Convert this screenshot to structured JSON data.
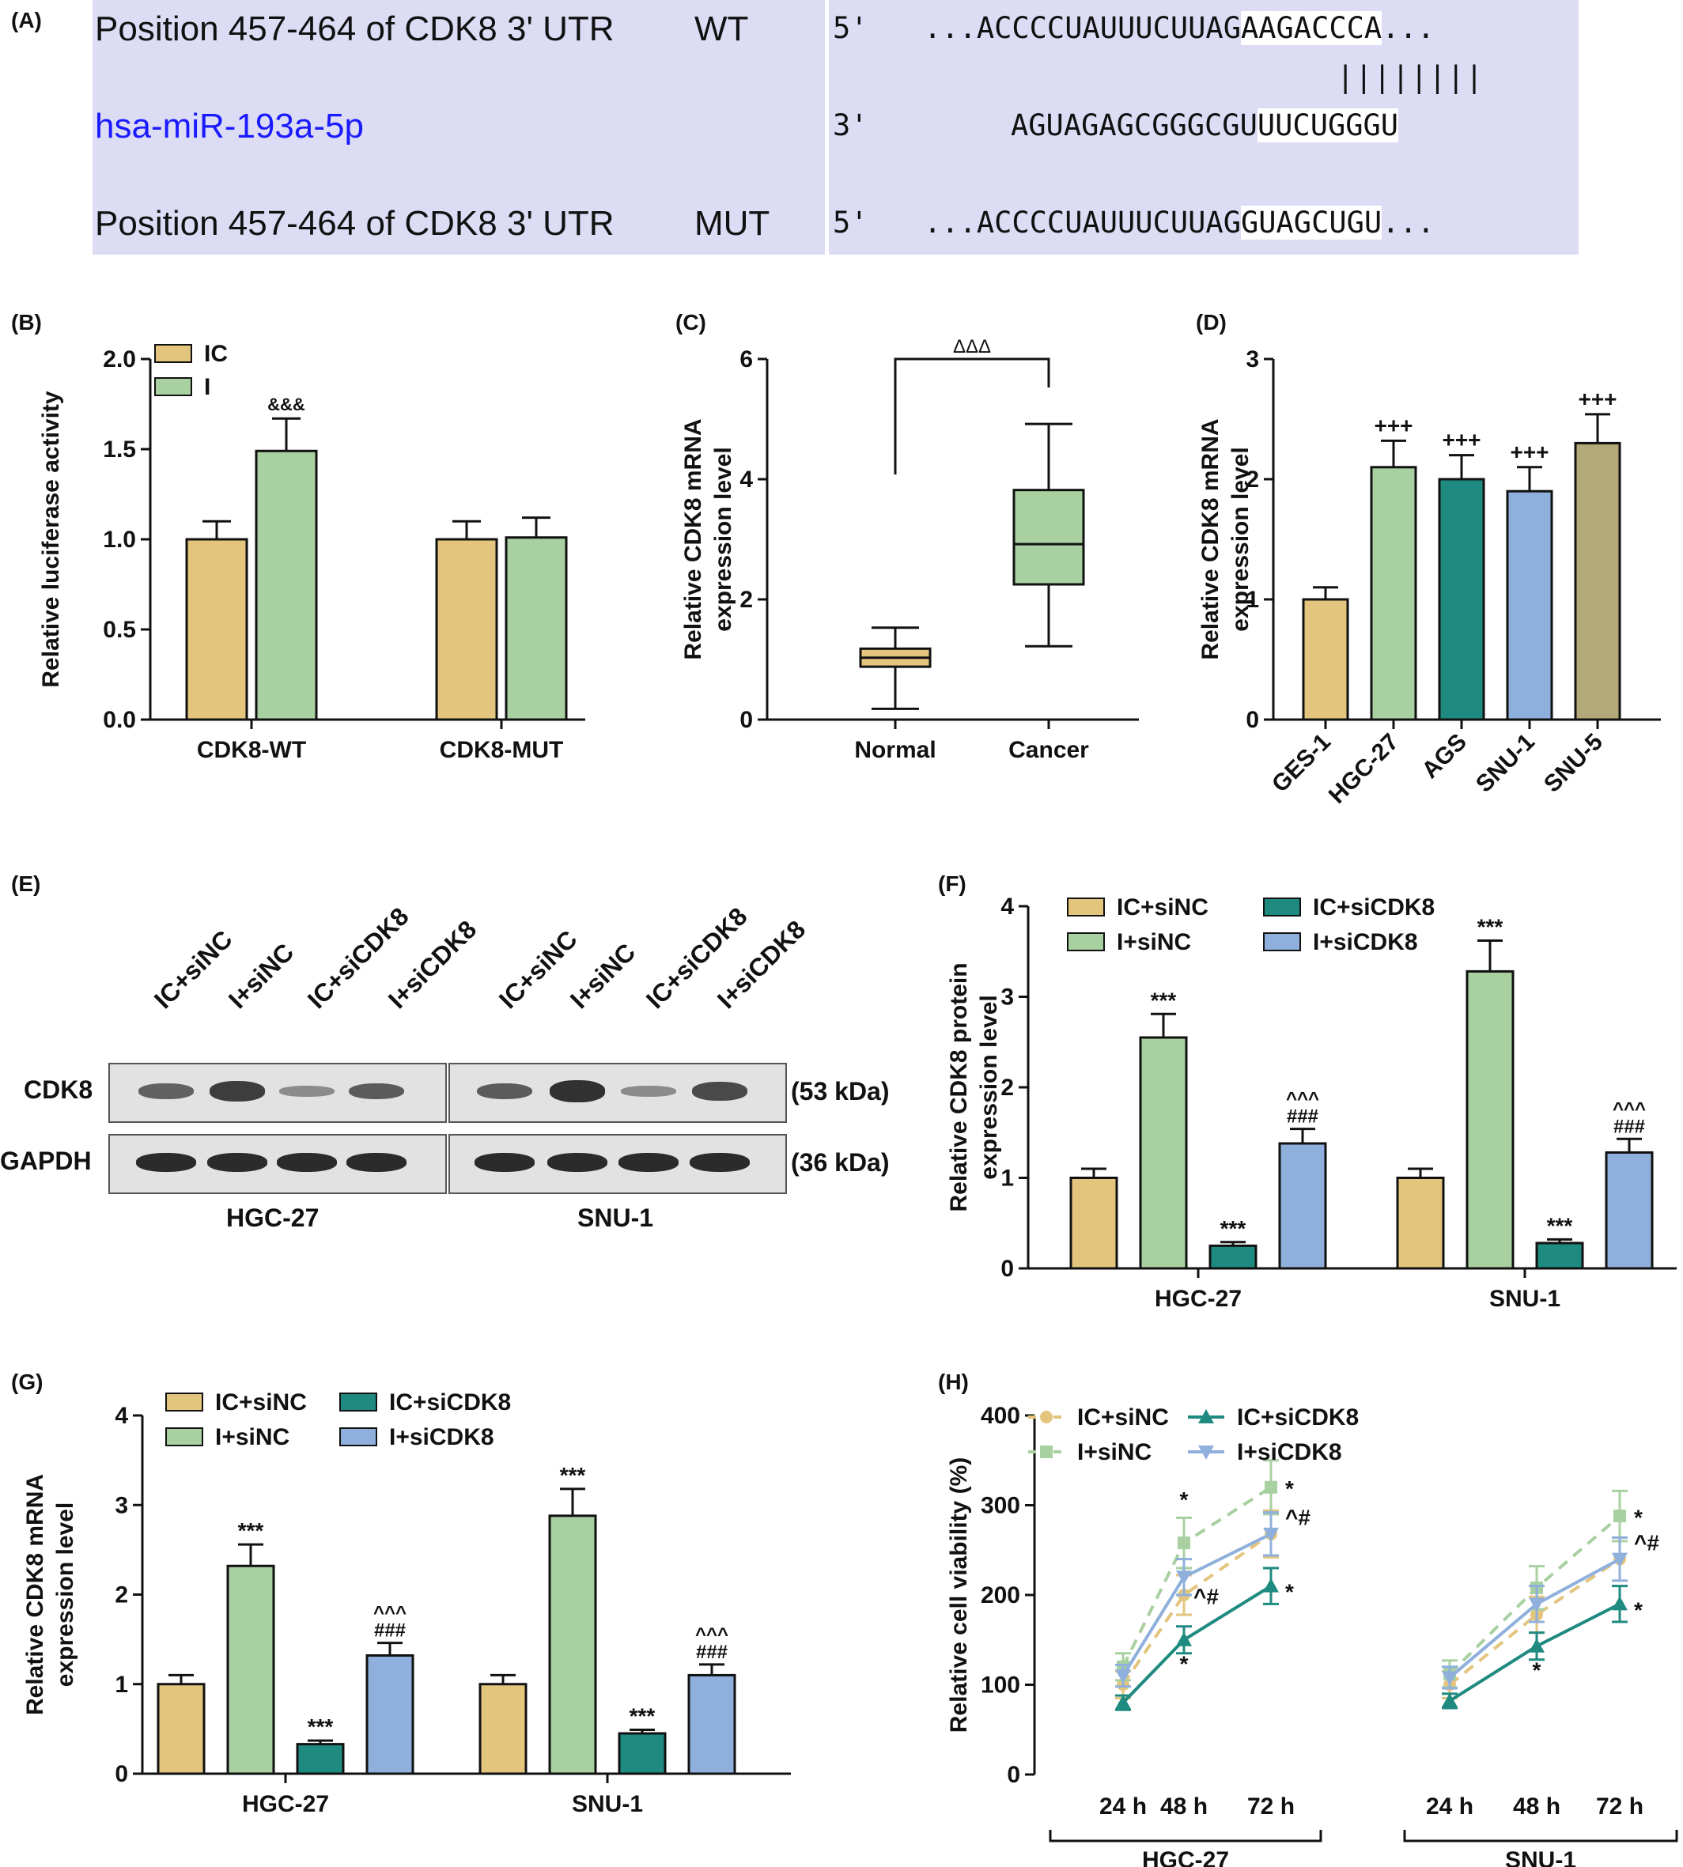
{
  "panel_labels": {
    "A": "(A)",
    "B": "(B)",
    "C": "(C)",
    "D": "(D)",
    "E": "(E)",
    "F": "(F)",
    "G": "(G)",
    "H": "(H)"
  },
  "panelA": {
    "row1_label": "Position 457-464 of CDK8 3' UTR",
    "row1_tag": "WT",
    "row1_end": "5'",
    "row1_seq_pre": "...ACCCCUAUUUCUUAG",
    "row1_seq_hl": "AAGACCCA",
    "row1_seq_post": "...",
    "pairing": "||||||||",
    "row2_label": "hsa-miR-193a-5p",
    "row2_label_color": "#1a1aff",
    "row2_end": "3'",
    "row2_seq_pre": "AGUAGAGCGGGCGU",
    "row2_seq_hl": "UUCUGGGU",
    "row3_label": "Position 457-464 of CDK8 3' UTR",
    "row3_tag": "MUT",
    "row3_end": "5'",
    "row3_seq_pre": "...ACCCCUAUUUCUUAG",
    "row3_seq_hl": "GUAGCUGU",
    "row3_seq_post": "..."
  },
  "colors": {
    "ic_sinc": "#e3c57e",
    "i_sinc": "#a8d0a0",
    "ic_sicdk8": "#1f8a80",
    "i_sicdk8": "#8fb0dc",
    "snu5": "#b3a978",
    "box_bg": "#dcdcf5"
  },
  "panelE": {
    "lanes": [
      "IC+siNC",
      "I+siNC",
      "IC+siCDK8",
      "I+siCDK8",
      "IC+siNC",
      "I+siNC",
      "IC+siCDK8",
      "I+siCDK8"
    ],
    "rows": [
      "CDK8",
      "GAPDH"
    ],
    "sizes": [
      "(53 kDa)",
      "(36 kDa)"
    ],
    "groups": [
      "HGC-27",
      "SNU-1"
    ],
    "cdk8_band_intensity": [
      0.55,
      0.85,
      0.2,
      0.6,
      0.6,
      0.95,
      0.2,
      0.75
    ]
  },
  "chart_data": [
    {
      "panel": "B",
      "type": "bar",
      "categories": [
        "CDK8-WT",
        "CDK8-MUT"
      ],
      "series": [
        {
          "name": "IC",
          "values": [
            1.0,
            1.0
          ],
          "errors": [
            0.1,
            0.1
          ]
        },
        {
          "name": "I",
          "values": [
            1.49,
            1.01
          ],
          "errors": [
            0.18,
            0.11
          ]
        }
      ],
      "annotations": [
        {
          "text": "&&&",
          "category": 0,
          "series": 1
        }
      ],
      "ylabel": "Relative luciferase activity",
      "ylim": [
        0,
        2.0
      ],
      "yticks": [
        "0.0",
        "0.5",
        "1.0",
        "1.5",
        "2.0"
      ],
      "legend": "top-left",
      "grid": false
    },
    {
      "panel": "C",
      "type": "box",
      "categories": [
        "Normal",
        "Cancer"
      ],
      "boxes": [
        {
          "min": 0.18,
          "q1": 0.88,
          "median": 1.03,
          "q3": 1.18,
          "max": 1.53
        },
        {
          "min": 1.22,
          "q1": 2.25,
          "median": 2.92,
          "q3": 3.82,
          "max": 4.92
        }
      ],
      "significance": "ΔΔΔ",
      "ylabel": "Relative CDK8 mRNA expression level",
      "ylim": [
        0,
        6
      ],
      "yticks": [
        "0",
        "2",
        "4",
        "6"
      ],
      "grid": false
    },
    {
      "panel": "D",
      "type": "bar",
      "categories": [
        "GES-1",
        "HGC-27",
        "AGS",
        "SNU-1",
        "SNU-5"
      ],
      "values": [
        1.0,
        2.1,
        2.0,
        1.9,
        2.3
      ],
      "errors": [
        0.1,
        0.22,
        0.2,
        0.2,
        0.24
      ],
      "annotations": [
        "",
        "+++",
        "+++",
        "+++",
        "+++"
      ],
      "ylabel": "Relative CDK8 mRNA expression level",
      "ylim": [
        0,
        3
      ],
      "yticks": [
        "0",
        "1",
        "2",
        "3"
      ],
      "grid": false
    },
    {
      "panel": "F",
      "type": "bar",
      "categories": [
        "HGC-27",
        "SNU-1"
      ],
      "series": [
        {
          "name": "IC+siNC",
          "values": [
            1.0,
            1.0
          ],
          "errors": [
            0.1,
            0.1
          ],
          "labels": [
            "",
            ""
          ]
        },
        {
          "name": "I+siNC",
          "values": [
            2.55,
            3.28
          ],
          "errors": [
            0.26,
            0.34
          ],
          "labels": [
            "***",
            "***"
          ]
        },
        {
          "name": "IC+siCDK8",
          "values": [
            0.25,
            0.28
          ],
          "errors": [
            0.04,
            0.04
          ],
          "labels": [
            "***",
            "***"
          ]
        },
        {
          "name": "I+siCDK8",
          "values": [
            1.38,
            1.28
          ],
          "errors": [
            0.16,
            0.15
          ],
          "labels": [
            "^^^\n###",
            "^^^\n###"
          ]
        }
      ],
      "ylabel": "Relative CDK8 protein expression level",
      "ylim": [
        0,
        4
      ],
      "yticks": [
        "0",
        "1",
        "2",
        "3",
        "4"
      ],
      "legend": "top",
      "grid": false
    },
    {
      "panel": "G",
      "type": "bar",
      "categories": [
        "HGC-27",
        "SNU-1"
      ],
      "series": [
        {
          "name": "IC+siNC",
          "values": [
            1.0,
            1.0
          ],
          "errors": [
            0.1,
            0.1
          ],
          "labels": [
            "",
            ""
          ]
        },
        {
          "name": "I+siNC",
          "values": [
            2.32,
            2.88
          ],
          "errors": [
            0.24,
            0.3
          ],
          "labels": [
            "***",
            "***"
          ]
        },
        {
          "name": "IC+siCDK8",
          "values": [
            0.33,
            0.45
          ],
          "errors": [
            0.04,
            0.04
          ],
          "labels": [
            "***",
            "***"
          ]
        },
        {
          "name": "I+siCDK8",
          "values": [
            1.32,
            1.1
          ],
          "errors": [
            0.14,
            0.12
          ],
          "labels": [
            "^^^\n###",
            "^^^\n###"
          ]
        }
      ],
      "ylabel": "Relative CDK8 mRNA expression level",
      "ylim": [
        0,
        4
      ],
      "yticks": [
        "0",
        "1",
        "2",
        "3",
        "4"
      ],
      "legend": "top",
      "grid": false
    },
    {
      "panel": "H",
      "type": "line",
      "x": [
        "24 h",
        "48 h",
        "72 h"
      ],
      "groups": [
        "HGC-27",
        "SNU-1"
      ],
      "series": [
        {
          "name": "IC+siNC",
          "marker": "circle",
          "dash": true,
          "values": [
            [
              100,
              200,
              268
            ],
            [
              100,
              178,
              240
            ]
          ],
          "errors": [
            [
              15,
              22,
              26
            ],
            [
              15,
              20,
              24
            ]
          ]
        },
        {
          "name": "I+siNC",
          "marker": "square",
          "dash": true,
          "values": [
            [
              120,
              258,
              320
            ],
            [
              112,
              208,
              288
            ]
          ],
          "errors": [
            [
              15,
              28,
              30
            ],
            [
              15,
              24,
              28
            ]
          ]
        },
        {
          "name": "IC+siCDK8",
          "marker": "triangle-up",
          "dash": false,
          "values": [
            [
              80,
              150,
              210
            ],
            [
              82,
              143,
              190
            ]
          ],
          "errors": [
            [
              8,
              15,
              20
            ],
            [
              8,
              15,
              20
            ]
          ]
        },
        {
          "name": "I+siCDK8",
          "marker": "triangle-down",
          "dash": false,
          "values": [
            [
              110,
              220,
              268
            ],
            [
              108,
              190,
              240
            ]
          ],
          "errors": [
            [
              12,
              20,
              24
            ],
            [
              12,
              20,
              24
            ]
          ]
        }
      ],
      "annotations": [
        {
          "group": 0,
          "x": 1,
          "text": "*",
          "pos": "above"
        },
        {
          "group": 0,
          "x": 1,
          "text": "^#",
          "pos": "right"
        },
        {
          "group": 0,
          "x": 1,
          "text": "*",
          "pos": "below"
        },
        {
          "group": 0,
          "x": 2,
          "text": "*",
          "pos": "right-top"
        },
        {
          "group": 0,
          "x": 2,
          "text": "^#",
          "pos": "right-mid"
        },
        {
          "group": 0,
          "x": 2,
          "text": "*",
          "pos": "right-low"
        },
        {
          "group": 1,
          "x": 1,
          "text": "*",
          "pos": "below"
        },
        {
          "group": 1,
          "x": 2,
          "text": "*",
          "pos": "right-top"
        },
        {
          "group": 1,
          "x": 2,
          "text": "^#",
          "pos": "right-mid"
        },
        {
          "group": 1,
          "x": 2,
          "text": "*",
          "pos": "right-low"
        }
      ],
      "ylabel": "Relative cell viability (%)",
      "ylim": [
        0,
        400
      ],
      "yticks": [
        "0",
        "100",
        "200",
        "300",
        "400"
      ],
      "legend": "top",
      "grid": false
    }
  ]
}
